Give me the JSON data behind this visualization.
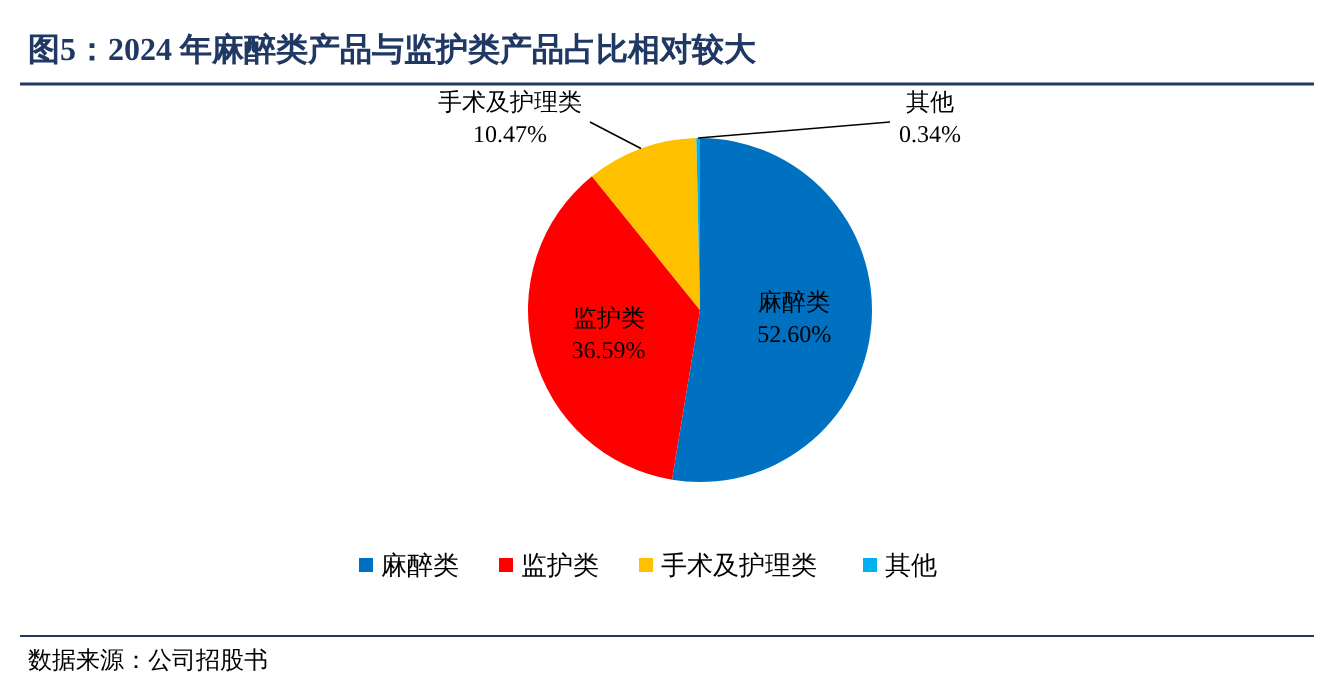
{
  "chart_data": {
    "type": "pie",
    "title": "图5：2024 年麻醉类产品与监护类产品占比相对较大",
    "categories": [
      "麻醉类",
      "监护类",
      "手术及护理类",
      "其他"
    ],
    "values": [
      52.6,
      36.59,
      10.47,
      0.34
    ],
    "colors": [
      "#0070c0",
      "#ff0000",
      "#ffc000",
      "#00b0f0"
    ],
    "value_labels": [
      "52.60%",
      "36.59%",
      "10.47%",
      "0.34%"
    ],
    "legend": "bottom",
    "annotations": [
      "数据来源：公司招股书"
    ]
  }
}
